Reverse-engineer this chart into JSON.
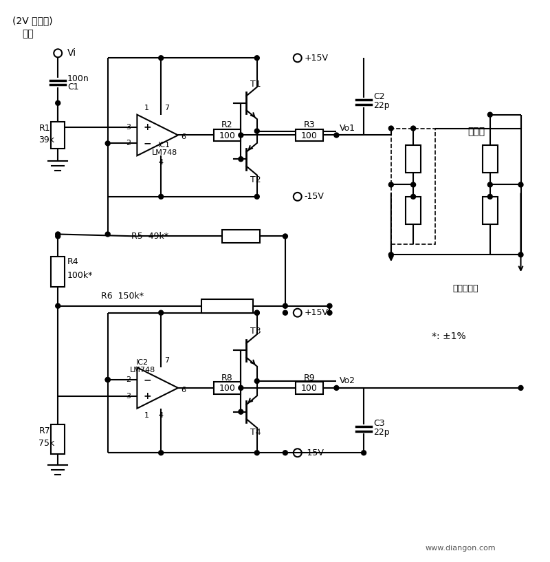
{
  "bg_color": "#ffffff",
  "line_color": "#000000",
  "figsize": [
    8.0,
    8.17
  ],
  "dpi": 100,
  "labels": {
    "top_label1": "(2V 正弦波)",
    "top_label2": "输入",
    "Vi": "Vi",
    "C1_val": "100n",
    "C1_name": "C1",
    "R1_val": "39k",
    "R1_name": "R1",
    "IC1_label": "IC1",
    "IC1_type": "LM748",
    "R2_name": "R2",
    "R2_val": "100",
    "R3_name": "R3",
    "R3_val": "100",
    "T1_name": "T1",
    "T2_name": "T2",
    "plus15V_1": "+15V",
    "minus15V_1": "-15V",
    "C2_name": "C2",
    "C2_val": "22p",
    "Vo1": "Vo1",
    "sensor1": "传感器",
    "R4_name": "R4",
    "R4_val": "100k*",
    "R5_label": "R5  49k*",
    "R6_label": "R6  150k*",
    "IC2_label": "IC2",
    "IC2_type": "LM748",
    "R7_name": "R7",
    "R7_val": "75k",
    "R8_name": "R8",
    "R8_val": "100",
    "R9_name": "R9",
    "R9_val": "100",
    "T3_name": "T3",
    "T4_name": "T4",
    "plus15V_2": "+15V",
    "minus15V_2": "-15V",
    "C3_name": "C3",
    "C3_val": "22p",
    "Vo2": "Vo2",
    "sensor_out": "传感器输出",
    "asterisk_note": "*: ±1%",
    "website": "www.diangon.com"
  }
}
